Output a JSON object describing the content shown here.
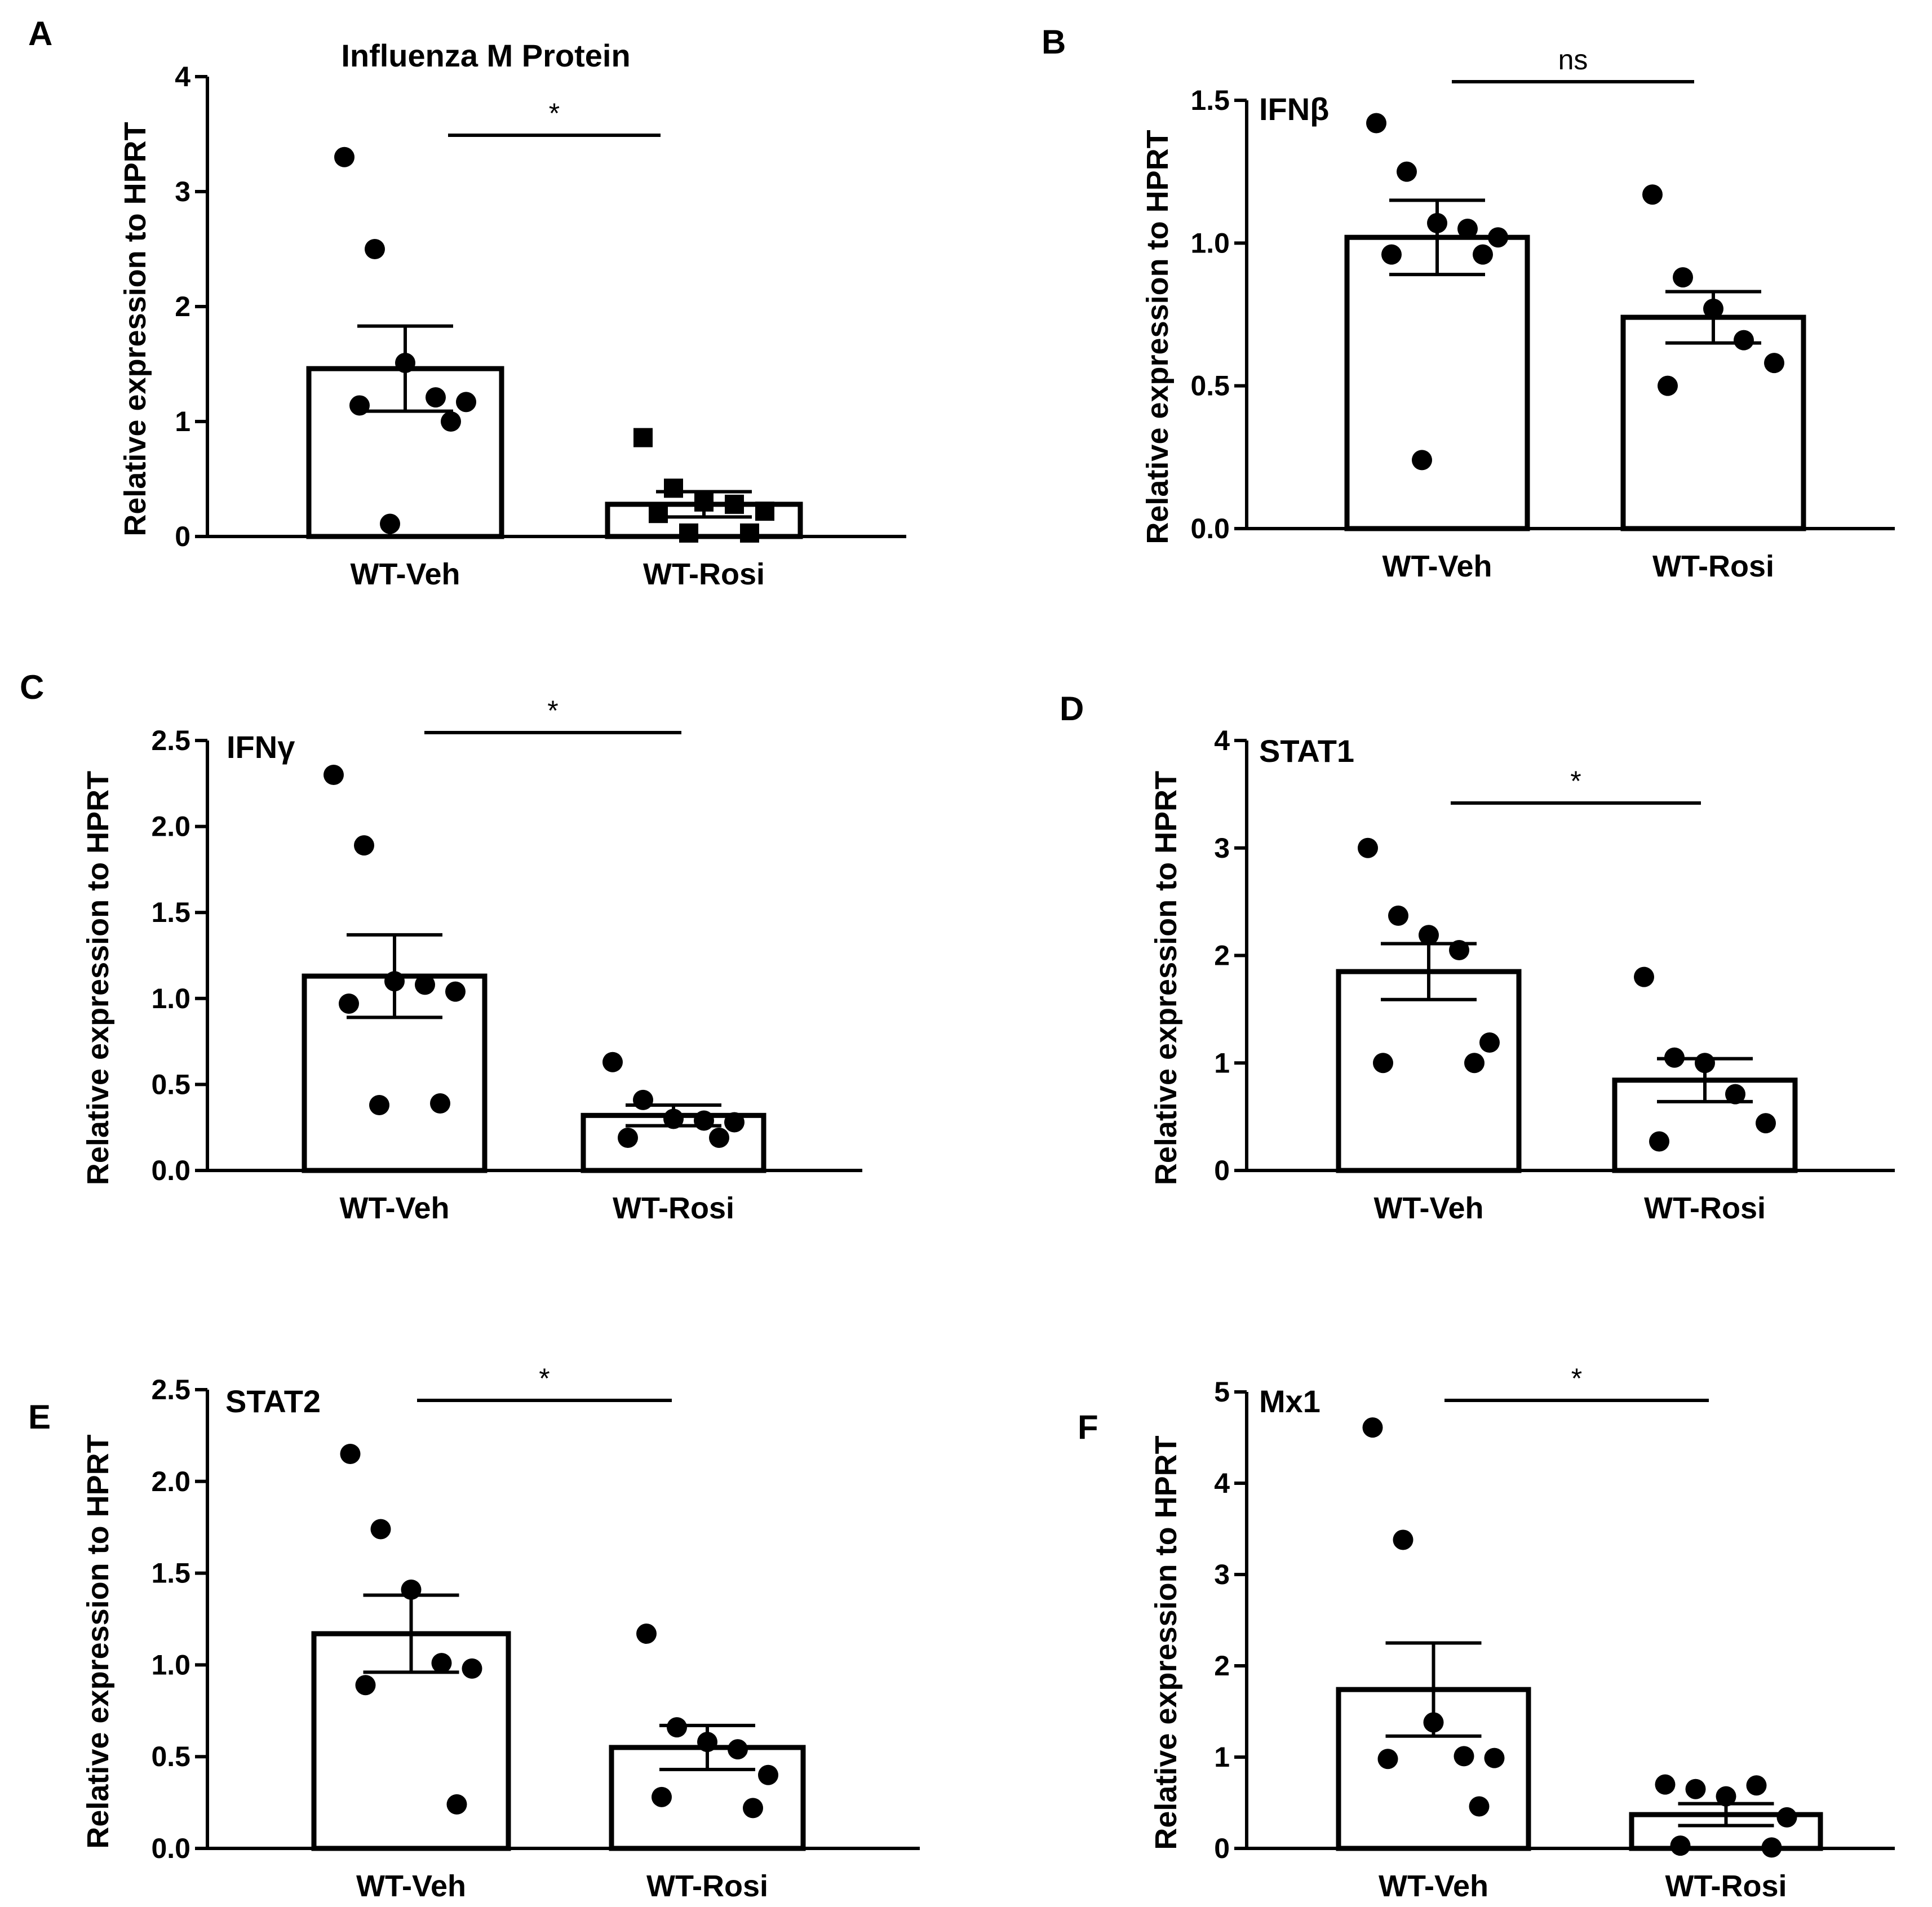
{
  "chart_data": [
    {
      "panel": "A",
      "type": "bar",
      "title": "Influenza M Protein",
      "ylabel": "Relative expression to HPRT",
      "categories": [
        "WT-Veh",
        "WT-Rosi"
      ],
      "ylim": [
        0,
        4
      ],
      "yticks": [
        0,
        1,
        2,
        3,
        4
      ],
      "series": [
        {
          "values": [
            1.46,
            0.28
          ],
          "error": [
            0.37,
            0.11
          ],
          "points": [
            [
              3.3,
              2.5,
              1.51,
              1.21,
              1.17,
              1.14,
              1.0,
              0.11
            ],
            [
              0.86,
              0.42,
              0.3,
              0.28,
              0.22,
              0.2,
              0.03,
              0.03
            ]
          ],
          "markers": [
            "circle",
            "square"
          ]
        }
      ],
      "significance": "*"
    },
    {
      "panel": "B",
      "type": "bar",
      "title": "IFNβ",
      "ylabel": "Relative expression to HPRT",
      "categories": [
        "WT-Veh",
        "WT-Rosi"
      ],
      "ylim": [
        0,
        1.5
      ],
      "yticks": [
        "0.0",
        "0.5",
        "1.0",
        "1.5"
      ],
      "series": [
        {
          "values": [
            1.02,
            0.74
          ],
          "error": [
            0.13,
            0.09
          ],
          "points": [
            [
              1.42,
              1.25,
              1.07,
              1.05,
              1.02,
              0.96,
              0.96,
              0.24
            ],
            [
              1.17,
              0.88,
              0.77,
              0.66,
              0.58,
              0.5
            ]
          ],
          "markers": [
            "circle",
            "circle"
          ]
        }
      ],
      "significance": "ns"
    },
    {
      "panel": "C",
      "type": "bar",
      "title": "IFNγ",
      "ylabel": "Relative expression to HPRT",
      "categories": [
        "WT-Veh",
        "WT-Rosi"
      ],
      "ylim": [
        0,
        2.5
      ],
      "yticks": [
        "0.0",
        "0.5",
        "1.0",
        "1.5",
        "2.0",
        "2.5"
      ],
      "series": [
        {
          "values": [
            1.13,
            0.32
          ],
          "error": [
            0.24,
            0.06
          ],
          "points": [
            [
              2.3,
              1.89,
              1.1,
              1.08,
              1.04,
              0.97,
              0.39,
              0.38
            ],
            [
              0.63,
              0.41,
              0.3,
              0.29,
              0.28,
              0.19,
              0.19
            ]
          ],
          "markers": [
            "circle",
            "circle"
          ]
        }
      ],
      "significance": "*"
    },
    {
      "panel": "D",
      "type": "bar",
      "title": "STAT1",
      "ylabel": "Relative expression to HPRT",
      "categories": [
        "WT-Veh",
        "WT-Rosi"
      ],
      "ylim": [
        0,
        4
      ],
      "yticks": [
        0,
        1,
        2,
        3,
        4
      ],
      "series": [
        {
          "values": [
            1.85,
            0.84
          ],
          "error": [
            0.26,
            0.2
          ],
          "points": [
            [
              3.0,
              2.37,
              2.19,
              2.05,
              1.19,
              1.0,
              1.0
            ],
            [
              1.8,
              1.05,
              1.0,
              0.71,
              0.44,
              0.27
            ]
          ],
          "markers": [
            "circle",
            "circle"
          ]
        }
      ],
      "significance": "*"
    },
    {
      "panel": "E",
      "type": "bar",
      "title": "STAT2",
      "ylabel": "Relative expression to HPRT",
      "categories": [
        "WT-Veh",
        "WT-Rosi"
      ],
      "ylim": [
        0,
        2.5
      ],
      "yticks": [
        "0.0",
        "0.5",
        "1.0",
        "1.5",
        "2.0",
        "2.5"
      ],
      "series": [
        {
          "values": [
            1.17,
            0.55
          ],
          "error": [
            0.21,
            0.12
          ],
          "points": [
            [
              2.15,
              1.74,
              1.41,
              1.01,
              0.98,
              0.89,
              0.24
            ],
            [
              1.17,
              0.66,
              0.58,
              0.54,
              0.4,
              0.28,
              0.22
            ]
          ],
          "markers": [
            "circle",
            "circle"
          ]
        }
      ],
      "significance": "*"
    },
    {
      "panel": "F",
      "type": "bar",
      "title": "Mx1",
      "ylabel": "Relative expression to HPRT",
      "categories": [
        "WT-Veh",
        "WT-Rosi"
      ],
      "ylim": [
        0,
        5
      ],
      "yticks": [
        0,
        1,
        2,
        3,
        4,
        5
      ],
      "series": [
        {
          "values": [
            1.74,
            0.37
          ],
          "error": [
            0.51,
            0.12
          ],
          "points": [
            [
              4.61,
              3.38,
              1.38,
              1.01,
              0.99,
              0.98,
              0.46
            ],
            [
              0.7,
              0.65,
              0.57,
              0.69,
              0.34,
              0.03,
              0.01
            ]
          ],
          "markers": [
            "circle",
            "circle"
          ]
        }
      ],
      "significance": "*"
    }
  ]
}
